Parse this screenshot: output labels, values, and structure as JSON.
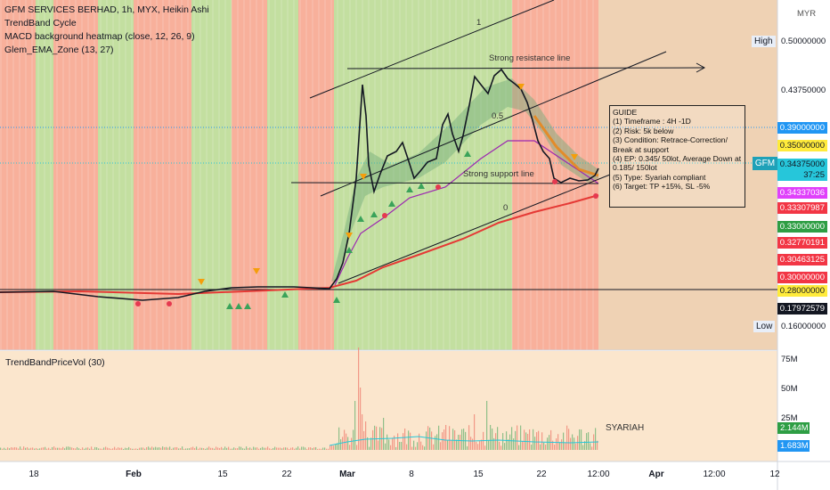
{
  "legend": {
    "symbol_line": "GFM SERVICES BERHAD, 1h, MYX, Heikin Ashi",
    "ind1": "TrendBand Cycle",
    "ind2": "MACD background heatmap (close, 12, 26, 9)",
    "ind3": "Glem_EMA_Zone (13, 27)"
  },
  "volume_pane": {
    "title": "TrendBandPriceVol (30)"
  },
  "currency": "MYR",
  "symbol_tag": "GFM",
  "drawings": {
    "resistance_label": "Strong resistance line",
    "support_label": "Strong support line",
    "fib_1": "1",
    "fib_05": "0.5",
    "fib_0": "0",
    "syariah": "SYARIAH"
  },
  "guide": {
    "lines": [
      "GUIDE",
      "(1) Timeframe : 4H -1D",
      "(2) Risk: 5k below",
      "(3) Condition: Retrace-Correction/",
      "Break at support",
      "(4) EP: 0.345/ 50lot, Average Down at",
      "0.185/ 150lot",
      "(5) Type: Syariah compliant",
      "(6) Target: TP +15%, SL -5%"
    ]
  },
  "price_axis": {
    "high_label": "High",
    "high_value": "0.50000000",
    "low_label": "Low",
    "low_value": "0.16000000",
    "tick_43750": "0.43750000",
    "tags": [
      {
        "text": "0.39000000",
        "bg": "#2196f3",
        "fg": "#ffffff"
      },
      {
        "text": "0.35000000",
        "bg": "#ffeb3b",
        "fg": "#131722"
      },
      {
        "text": "0.34375000",
        "bg": "#26c6da",
        "fg": "#131722"
      },
      {
        "text": "37:25",
        "bg": "#26c6da",
        "fg": "#131722"
      },
      {
        "text": "0.34337036",
        "bg": "#e040fb",
        "fg": "#ffffff"
      },
      {
        "text": "0.33307987",
        "bg": "#f23645",
        "fg": "#ffffff"
      },
      {
        "text": "0.33000000",
        "bg": "#2e9e44",
        "fg": "#ffffff"
      },
      {
        "text": "0.32770191",
        "bg": "#f23645",
        "fg": "#ffffff"
      },
      {
        "text": "0.30463125",
        "bg": "#f23645",
        "fg": "#ffffff"
      },
      {
        "text": "0.30000000",
        "bg": "#f23645",
        "fg": "#ffffff"
      },
      {
        "text": "0.28000000",
        "bg": "#ffeb3b",
        "fg": "#131722"
      },
      {
        "text": "0.17972579",
        "bg": "#131722",
        "fg": "#ffffff"
      }
    ]
  },
  "volume_axis": {
    "ticks": [
      "75M",
      "50M",
      "25M"
    ],
    "tags": [
      {
        "text": "2.144M",
        "bg": "#2e9e44",
        "fg": "#ffffff"
      },
      {
        "text": "1.683M",
        "bg": "#2196f3",
        "fg": "#ffffff"
      }
    ]
  },
  "time_axis": [
    "18",
    "Feb",
    "15",
    "22",
    "Mar",
    "8",
    "15",
    "22",
    "12:00",
    "Apr",
    "12:00",
    "12"
  ],
  "colors": {
    "green_zone": "#b9d98f",
    "red_zone": "#f7a28a",
    "ema_red": "#e53935",
    "ema_purple": "#9c27b0"
  }
}
